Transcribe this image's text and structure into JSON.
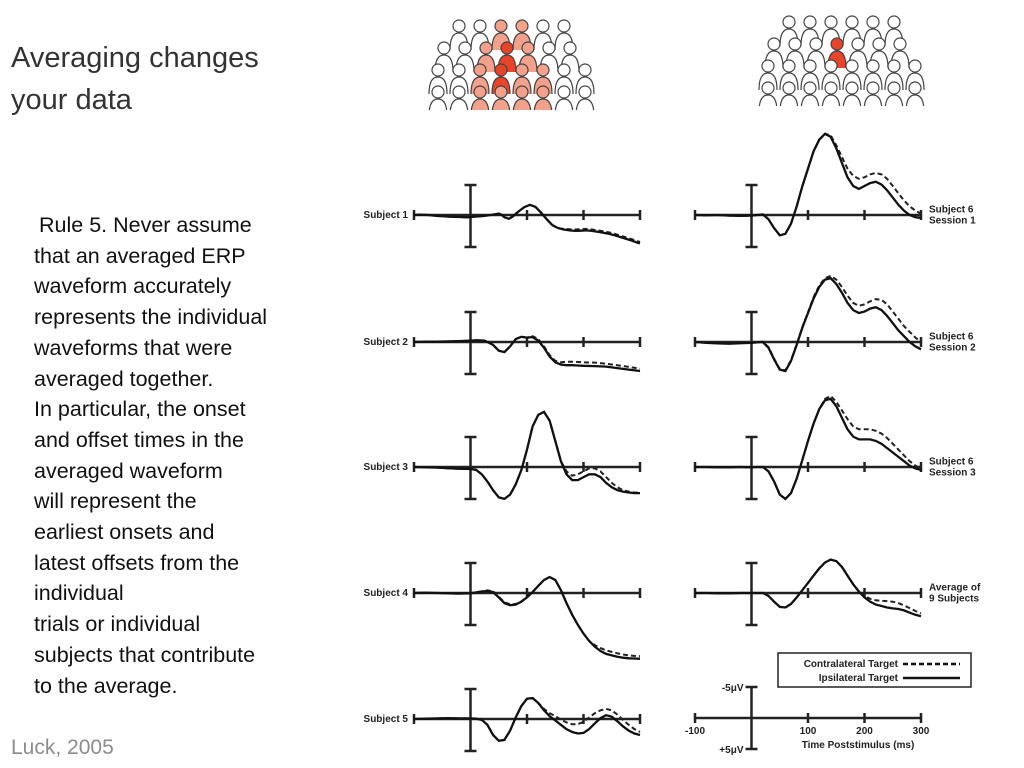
{
  "slide": {
    "title_lines": [
      "Averaging changes",
      "your data"
    ],
    "citation": "Luck, 2005",
    "rule_lines": [
      "Rule 5. Never assume",
      "that an averaged ERP",
      "waveform accurately",
      "represents the individual",
      "waveforms that were",
      "averaged together.",
      "In particular, the onset",
      "and offset times in the",
      "averaged waveform",
      "will represent the",
      "earliest onsets and",
      "latest offsets from the",
      "individual",
      "trials or individual",
      "subjects that contribute",
      "to the average."
    ]
  },
  "crowd_icons": [
    {
      "name": "crowd-left-icon",
      "highlight_color": "#f4a18b",
      "accent_color": "#e8442a"
    },
    {
      "name": "crowd-right-icon",
      "highlight_color": "#e8442a",
      "accent_color": "#e8442a"
    }
  ],
  "chart_data": {
    "type": "line",
    "xlabel": "Time Poststimulus (ms)",
    "x_ticks": [
      "-100",
      "100",
      "200",
      "300"
    ],
    "xlim": [
      -100,
      300
    ],
    "y_scale_labels": [
      "-5μV",
      "+5μV"
    ],
    "legend": [
      {
        "name": "Contralateral Target",
        "style": "dashed"
      },
      {
        "name": "Ipsilateral Target",
        "style": "solid"
      }
    ],
    "panels": [
      {
        "label": "Subject 1",
        "column": "left",
        "x": [
          -100,
          -90,
          -75,
          -60,
          -45,
          -35,
          -20,
          -5,
          5,
          15,
          25,
          35,
          45,
          50,
          55,
          60,
          68,
          75,
          85,
          95,
          105,
          115,
          125,
          135,
          145,
          155,
          165,
          175,
          185,
          195,
          205,
          215,
          225,
          235,
          245,
          255,
          265,
          275,
          285,
          295,
          300
        ],
        "solid": [
          0,
          0.1,
          0,
          -0.3,
          -0.5,
          -0.6,
          -0.7,
          -0.8,
          -0.6,
          -0.5,
          -0.3,
          0,
          0.3,
          0.5,
          0.1,
          -0.8,
          -1.3,
          -0.5,
          1.2,
          2.7,
          3.5,
          2.8,
          0.8,
          -1.5,
          -3.5,
          -4.5,
          -5,
          -5.3,
          -5.5,
          -5.4,
          -5.3,
          -5.5,
          -5.8,
          -6.1,
          -6.5,
          -7,
          -7.6,
          -8.2,
          -8.8,
          -9.5,
          -9.8
        ],
        "dashed": [
          0,
          0.1,
          0,
          -0.3,
          -0.5,
          -0.6,
          -0.7,
          -0.8,
          -0.6,
          -0.5,
          -0.3,
          0,
          0.3,
          0.5,
          0.1,
          -0.8,
          -1.3,
          -0.5,
          1.2,
          2.7,
          3.5,
          2.8,
          0.8,
          -1.5,
          -3.5,
          -4.5,
          -4.8,
          -4.9,
          -5,
          -4.9,
          -4.8,
          -5,
          -5.3,
          -5.6,
          -6,
          -6.5,
          -7.1,
          -7.7,
          -8.3,
          -9,
          -9.3
        ]
      },
      {
        "label": "Subject 2",
        "column": "left",
        "x": [
          -100,
          -80,
          -60,
          -40,
          -20,
          0,
          10,
          25,
          40,
          50,
          60,
          70,
          80,
          90,
          100,
          110,
          120,
          130,
          140,
          150,
          160,
          170,
          180,
          190,
          200,
          220,
          240,
          260,
          280,
          300
        ],
        "solid": [
          0,
          0.1,
          0.1,
          0.2,
          0.3,
          0.5,
          0.6,
          0.5,
          -1,
          -3,
          -3.5,
          -1.5,
          1,
          1.8,
          1.5,
          1.7,
          0.5,
          -2,
          -5,
          -7,
          -7.8,
          -8,
          -8,
          -8.1,
          -8.2,
          -8.3,
          -8.5,
          -9,
          -9.5,
          -10
        ],
        "dashed": [
          0,
          0.1,
          0.1,
          0.2,
          0.3,
          0.5,
          0.6,
          0.5,
          -1,
          -3,
          -3.5,
          -1.5,
          1,
          1.8,
          1.5,
          2,
          1,
          -1.5,
          -4.5,
          -6.5,
          -7,
          -6.8,
          -6.8,
          -6.9,
          -7,
          -7.1,
          -7.5,
          -8,
          -8.6,
          -9.2
        ]
      },
      {
        "label": "Subject 3",
        "column": "left",
        "x": [
          -100,
          -80,
          -60,
          -40,
          -20,
          0,
          10,
          20,
          30,
          40,
          50,
          60,
          70,
          80,
          90,
          100,
          110,
          120,
          130,
          140,
          150,
          160,
          170,
          180,
          190,
          200,
          210,
          220,
          230,
          240,
          250,
          260,
          270,
          280,
          290,
          300
        ],
        "solid": [
          0,
          -0.1,
          -0.2,
          -0.4,
          -0.6,
          -0.7,
          -1,
          -2.5,
          -5,
          -8,
          -10.5,
          -11,
          -9.5,
          -6,
          -1,
          6,
          14,
          18,
          19,
          16,
          9,
          2,
          -2.5,
          -4.5,
          -4.5,
          -3.5,
          -2.5,
          -2.5,
          -3.5,
          -5.5,
          -7,
          -8,
          -8.5,
          -8.8,
          -9,
          -9
        ],
        "dashed": [
          0,
          -0.1,
          -0.2,
          -0.4,
          -0.6,
          -0.7,
          -1,
          -2.5,
          -5,
          -8,
          -10.5,
          -11,
          -9.5,
          -6,
          -1,
          6,
          14,
          18,
          19,
          16,
          9,
          2,
          -1.5,
          -3,
          -2.5,
          -1.5,
          -0.5,
          -0.5,
          -1.5,
          -3.5,
          -5.5,
          -7,
          -8,
          -8.5,
          -8.8,
          -8.9
        ]
      },
      {
        "label": "Subject 4",
        "column": "left",
        "x": [
          -100,
          -80,
          -60,
          -40,
          -20,
          0,
          10,
          20,
          30,
          40,
          50,
          60,
          70,
          80,
          90,
          100,
          110,
          120,
          130,
          140,
          150,
          160,
          170,
          180,
          190,
          200,
          210,
          220,
          230,
          240,
          250,
          260,
          270,
          280,
          290,
          300
        ],
        "solid": [
          0,
          0.1,
          0,
          -0.1,
          -0.2,
          -0.1,
          0.2,
          0.5,
          0.7,
          0.3,
          -1.5,
          -3.5,
          -4.2,
          -4,
          -3,
          -1.5,
          0.3,
          2.5,
          4.5,
          5.5,
          4.5,
          1,
          -3.5,
          -7.5,
          -11,
          -14,
          -16.5,
          -18.5,
          -20,
          -21,
          -21.5,
          -22,
          -22.3,
          -22.5,
          -22.6,
          -22.7
        ],
        "dashed": [
          0,
          0.1,
          0,
          -0.1,
          -0.2,
          -0.1,
          0.2,
          0.6,
          0.9,
          0.6,
          -1.3,
          -3.2,
          -3.9,
          -3.8,
          -2.9,
          -1.4,
          0.4,
          2.5,
          4.5,
          5.5,
          4.5,
          1,
          -3.5,
          -7.5,
          -11,
          -14,
          -16.5,
          -18,
          -19,
          -19.8,
          -20.3,
          -20.8,
          -21.2,
          -21.5,
          -21.7,
          -21.8
        ]
      },
      {
        "label": "Subject 5",
        "column": "left",
        "x": [
          -100,
          -80,
          -60,
          -40,
          -20,
          0,
          10,
          20,
          30,
          40,
          50,
          60,
          70,
          80,
          90,
          100,
          110,
          120,
          130,
          140,
          150,
          160,
          170,
          180,
          190,
          200,
          210,
          220,
          230,
          240,
          250,
          260,
          270,
          280,
          290,
          300
        ],
        "solid": [
          0,
          0.1,
          0.2,
          0.3,
          0.2,
          0.2,
          0.1,
          -0.3,
          -2,
          -5.5,
          -7.5,
          -7.2,
          -4,
          0.5,
          4.5,
          7,
          7.2,
          5.5,
          3,
          1,
          -0.5,
          -2,
          -3.5,
          -4.5,
          -5,
          -4.8,
          -3.5,
          -1.5,
          0.3,
          1.3,
          0.8,
          -0.8,
          -2.5,
          -4,
          -5,
          -5.5
        ],
        "dashed": [
          0,
          0.1,
          0.2,
          0.3,
          0.2,
          0.2,
          0.1,
          -0.3,
          -2,
          -5.5,
          -7.5,
          -7.2,
          -4,
          0.5,
          4.5,
          7,
          7.2,
          5.5,
          3.5,
          2,
          1,
          -0.2,
          -1.2,
          -1.8,
          -1.8,
          -1,
          0.5,
          2,
          3,
          3.5,
          3,
          1.5,
          -0.3,
          -2,
          -3.5,
          -4.5
        ]
      },
      {
        "label": "Subject 6 Session 1",
        "column": "right",
        "x": [
          -100,
          -80,
          -60,
          -40,
          -20,
          0,
          10,
          20,
          30,
          40,
          50,
          60,
          70,
          80,
          90,
          100,
          110,
          120,
          130,
          140,
          150,
          160,
          170,
          180,
          190,
          200,
          210,
          220,
          230,
          240,
          250,
          260,
          270,
          280,
          290,
          300
        ],
        "solid": [
          0,
          -0.1,
          0,
          -0.2,
          -0.3,
          -0.2,
          0,
          0.2,
          -1.5,
          -4.5,
          -7,
          -6.5,
          -3,
          3,
          10,
          16,
          22,
          26,
          28,
          27,
          23,
          18,
          13,
          10,
          9,
          10,
          11,
          11.5,
          10.5,
          8.5,
          6,
          3.5,
          1.5,
          0,
          -0.8,
          -1
        ],
        "dashed": [
          0,
          -0.1,
          0,
          -0.2,
          -0.3,
          -0.2,
          0,
          0.2,
          -1.5,
          -4.5,
          -7,
          -6.5,
          -3,
          3,
          10,
          16,
          22,
          26,
          28,
          27.5,
          24,
          20,
          16,
          13.5,
          12.5,
          13,
          14,
          14.5,
          14,
          12.5,
          10,
          7.5,
          5,
          3,
          1.5,
          0.5
        ]
      },
      {
        "label": "Subject 6 Session 2",
        "column": "right",
        "x": [
          -100,
          -80,
          -60,
          -40,
          -20,
          0,
          10,
          20,
          30,
          40,
          50,
          60,
          70,
          80,
          90,
          100,
          110,
          120,
          130,
          140,
          150,
          160,
          170,
          180,
          190,
          200,
          210,
          220,
          230,
          240,
          250,
          260,
          270,
          280,
          290,
          300
        ],
        "solid": [
          0,
          -0.3,
          -0.5,
          -0.6,
          -0.4,
          -0.3,
          -0.1,
          0,
          -2,
          -6,
          -9.5,
          -10,
          -6.5,
          -1,
          5,
          10,
          15,
          19,
          21.5,
          22,
          20,
          17,
          13.5,
          11,
          10,
          10.5,
          11.5,
          12,
          11,
          9,
          6.5,
          4,
          2,
          0,
          -1.5,
          -2.5
        ],
        "dashed": [
          0,
          -0.2,
          -0.4,
          -0.5,
          -0.3,
          -0.2,
          0,
          0.1,
          -1.8,
          -5.8,
          -9.3,
          -9.8,
          -6.3,
          -0.8,
          5.2,
          10.2,
          15.5,
          19.5,
          22,
          22.8,
          21.5,
          19,
          16,
          13.5,
          12.5,
          13,
          14,
          14.8,
          14.5,
          13,
          10.5,
          8,
          5.5,
          3.5,
          1.5,
          0
        ]
      },
      {
        "label": "Subject 6 Session 3",
        "column": "right",
        "x": [
          -100,
          -80,
          -60,
          -40,
          -20,
          0,
          10,
          20,
          30,
          40,
          50,
          60,
          70,
          80,
          90,
          100,
          110,
          120,
          130,
          140,
          150,
          160,
          170,
          180,
          190,
          200,
          210,
          220,
          230,
          240,
          250,
          260,
          270,
          280,
          290,
          300
        ],
        "solid": [
          0,
          0,
          -0.1,
          -0.1,
          0,
          -0.1,
          0,
          0,
          -1.5,
          -5,
          -9.5,
          -11,
          -9,
          -4,
          2.5,
          9,
          15,
          20,
          23,
          23.5,
          21,
          17,
          13,
          10.5,
          9.5,
          9.5,
          9.5,
          9,
          8,
          6.5,
          5,
          3.5,
          2,
          0.5,
          -0.5,
          -1
        ],
        "dashed": [
          0,
          0,
          -0.1,
          -0.1,
          0,
          -0.1,
          0,
          0,
          -1.5,
          -5,
          -9.5,
          -11,
          -9,
          -4,
          2.5,
          9,
          15,
          20,
          23.5,
          24.5,
          22.5,
          19.5,
          16.5,
          14,
          13,
          13,
          13,
          12.5,
          11.5,
          10,
          8,
          6,
          4,
          2,
          0.5,
          -0.5
        ]
      },
      {
        "label": "Average of 9 Subjects",
        "column": "right",
        "x": [
          -100,
          -80,
          -60,
          -40,
          -20,
          0,
          10,
          20,
          30,
          40,
          50,
          60,
          70,
          80,
          90,
          100,
          110,
          120,
          130,
          140,
          150,
          160,
          170,
          180,
          190,
          200,
          210,
          220,
          230,
          240,
          250,
          260,
          270,
          280,
          290,
          300
        ],
        "solid": [
          0,
          0,
          -0.1,
          -0.1,
          0,
          0,
          0,
          0,
          -1,
          -3,
          -4.8,
          -5,
          -3.8,
          -1.5,
          1,
          3.5,
          6,
          8.5,
          10.5,
          11.5,
          11,
          9,
          6,
          3,
          0.5,
          -1.5,
          -3,
          -4,
          -4.5,
          -5,
          -5.3,
          -5.5,
          -6,
          -6.8,
          -7.5,
          -8
        ],
        "dashed": [
          0,
          0,
          -0.1,
          -0.1,
          0,
          0,
          0,
          0,
          -1,
          -3,
          -4.8,
          -5,
          -3.8,
          -1.5,
          1,
          3.5,
          6,
          8.5,
          10.5,
          11.5,
          11,
          9,
          6,
          3,
          0.5,
          -1,
          -2,
          -2.5,
          -2.7,
          -2.8,
          -3,
          -3.5,
          -4.3,
          -5.2,
          -6.2,
          -7
        ]
      }
    ]
  }
}
